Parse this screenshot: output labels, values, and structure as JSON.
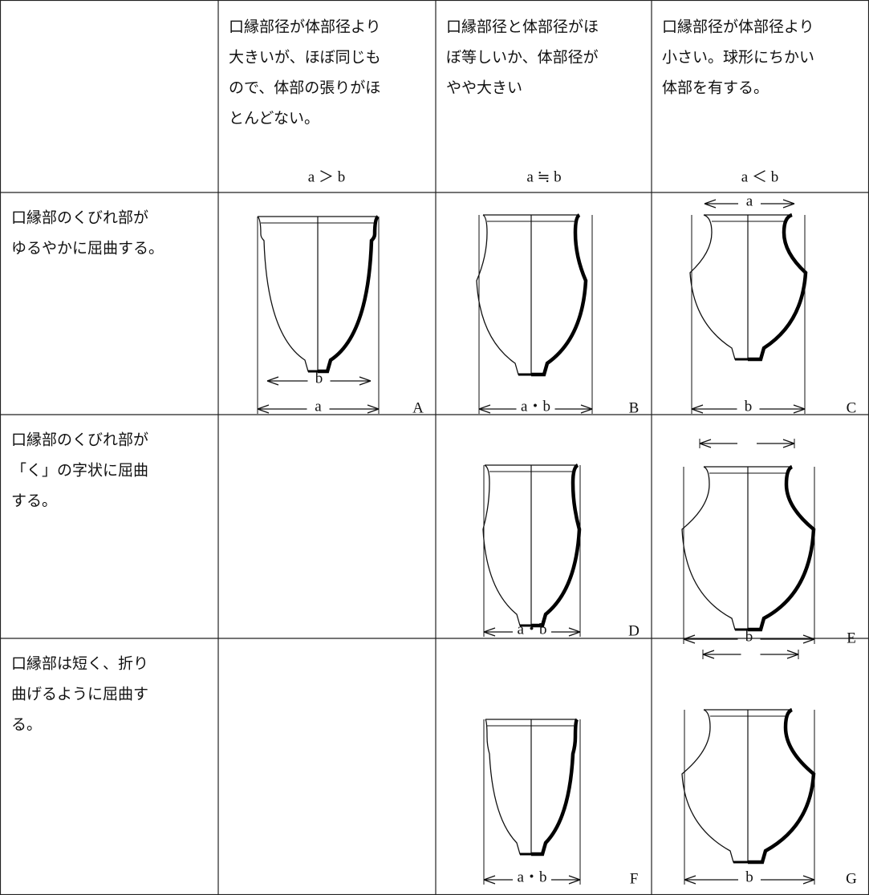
{
  "header": {
    "columns": [
      {
        "lines": [
          "口縁部径が体部径より",
          "大きいが、ほぼ同じも",
          "ので、体部の張りがほ",
          "とんどない。"
        ],
        "relation": "a ＞ b"
      },
      {
        "lines": [
          "口縁部径と体部径がほ",
          "ぼ等しいか、体部径が",
          "やや大きい"
        ],
        "relation": "a ≒ b"
      },
      {
        "lines": [
          "口縁部径が体部径より",
          "小さい。球形にちかい",
          "体部を有する。"
        ],
        "relation": "a ＜ b"
      }
    ]
  },
  "rows": [
    {
      "lines": [
        "口縁部のくびれ部が",
        "ゆるやかに屈曲する。"
      ],
      "figures": [
        {
          "letter": "A",
          "labels": [
            "b",
            "a"
          ]
        },
        {
          "letter": "B",
          "labels": [
            "a・b"
          ]
        },
        {
          "letter": "C",
          "labels": [
            "a",
            "b"
          ]
        }
      ]
    },
    {
      "lines": [
        "口縁部のくびれ部が",
        "「く」の字状に屈曲",
        "する。"
      ],
      "figures": [
        {
          "letter": "D",
          "labels": [
            "a・b"
          ]
        },
        {
          "letter": "E",
          "labels": [
            "b"
          ]
        }
      ]
    },
    {
      "lines": [
        "口縁部は短く、折り",
        "曲げるように屈曲す",
        "る。"
      ],
      "figures": [
        {
          "letter": "F",
          "labels": [
            "a・b"
          ]
        },
        {
          "letter": "G",
          "labels": [
            "b"
          ]
        }
      ]
    }
  ]
}
